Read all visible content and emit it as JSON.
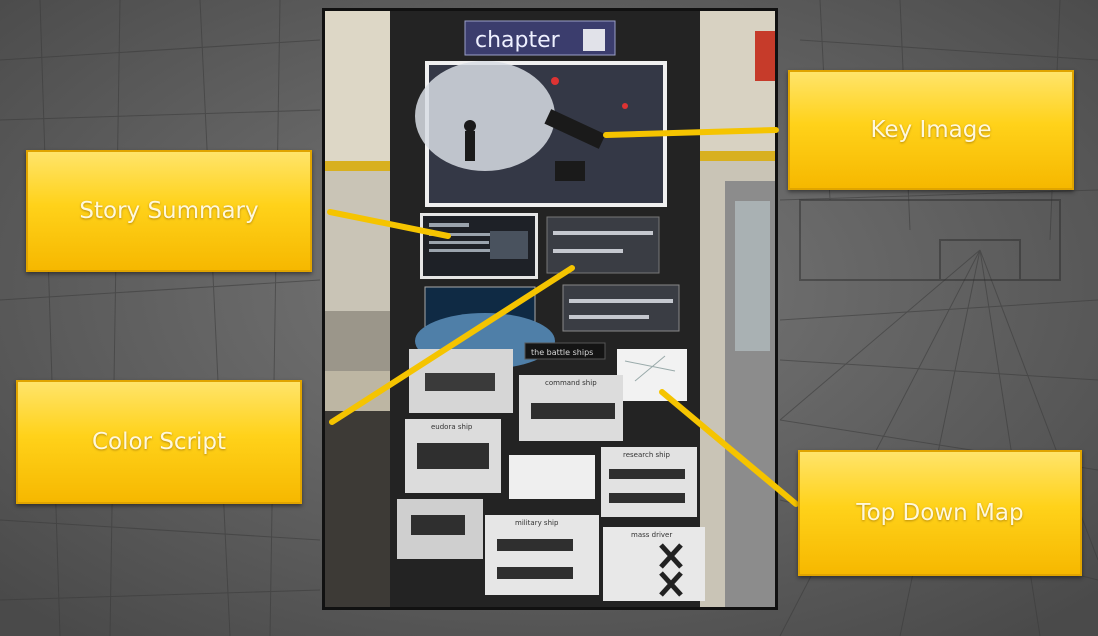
{
  "callouts": {
    "story_summary": "Story Summary",
    "key_image": "Key Image",
    "color_script": "Color Script",
    "top_down_map": "Top Down Map"
  },
  "board": {
    "chapter_label": "chapter",
    "battle_ships_label": "the battle ships",
    "ship_labels": {
      "command": "command ship",
      "eudora": "eudora ship",
      "research": "research ship",
      "military": "military ship",
      "mass_driver": "mass driver"
    }
  },
  "colors": {
    "callout_fill": "#ffd21a",
    "callout_text": "#fff8dc",
    "connector": "#f5c400",
    "board": "#222222"
  }
}
